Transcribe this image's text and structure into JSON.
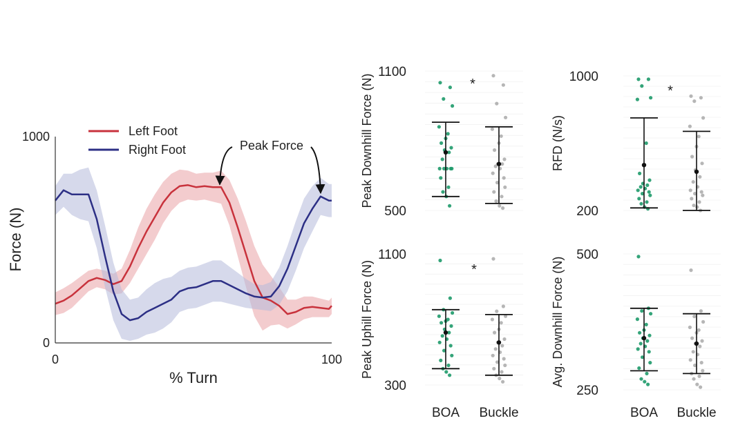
{
  "chart_data": [
    {
      "type": "line",
      "ylabel": "Force (N)",
      "xlabel": "% Turn",
      "xlim": [
        0,
        100
      ],
      "ylim": [
        0,
        1000
      ],
      "xticks": [
        "0",
        "100"
      ],
      "yticks": [
        "0",
        "1000"
      ],
      "legend_position": "top-left",
      "annotation": "Peak Force",
      "annotation_points": [
        [
          60,
          755
        ],
        [
          96,
          700
        ]
      ],
      "series": [
        {
          "name": "Left Foot",
          "color": "#c8323c",
          "band_color": "#eaa2a6",
          "x": [
            0,
            3,
            6,
            9,
            12,
            15,
            18,
            21,
            24,
            27,
            30,
            33,
            36,
            39,
            42,
            45,
            48,
            51,
            54,
            57,
            60,
            63,
            66,
            69,
            72,
            75,
            78,
            81,
            84,
            87,
            90,
            93,
            96,
            99,
            100
          ],
          "y": [
            190,
            205,
            230,
            265,
            300,
            315,
            305,
            285,
            300,
            370,
            460,
            540,
            610,
            680,
            730,
            760,
            765,
            755,
            760,
            755,
            755,
            680,
            560,
            430,
            300,
            220,
            205,
            180,
            140,
            150,
            170,
            175,
            170,
            165,
            180
          ],
          "spread": [
            55,
            60,
            60,
            55,
            50,
            45,
            45,
            50,
            60,
            80,
            100,
            110,
            110,
            100,
            90,
            80,
            70,
            65,
            65,
            70,
            80,
            110,
            140,
            160,
            170,
            160,
            120,
            90,
            70,
            60,
            55,
            50,
            45,
            40,
            40
          ]
        },
        {
          "name": "Right Foot",
          "color": "#2c2f85",
          "band_color": "#b5b9da",
          "x": [
            0,
            3,
            6,
            9,
            12,
            15,
            18,
            21,
            24,
            27,
            30,
            33,
            36,
            39,
            42,
            45,
            48,
            51,
            54,
            57,
            60,
            63,
            66,
            69,
            72,
            75,
            78,
            81,
            84,
            87,
            90,
            93,
            96,
            99,
            100
          ],
          "y": [
            690,
            740,
            720,
            720,
            720,
            600,
            420,
            250,
            140,
            110,
            120,
            150,
            170,
            190,
            210,
            250,
            265,
            270,
            285,
            300,
            300,
            280,
            260,
            240,
            225,
            220,
            225,
            275,
            360,
            470,
            580,
            650,
            710,
            690,
            690
          ],
          "spread": [
            70,
            80,
            100,
            120,
            130,
            140,
            150,
            140,
            120,
            100,
            100,
            110,
            120,
            120,
            110,
            100,
            100,
            100,
            100,
            100,
            100,
            90,
            80,
            70,
            60,
            60,
            70,
            90,
            110,
            120,
            120,
            110,
            90,
            80,
            80
          ]
        }
      ]
    },
    {
      "type": "scatter",
      "subtype": "strip_with_error_bars",
      "ylabel": "Peak Downhill Force (N)",
      "ylim": [
        500,
        1100
      ],
      "yticks": [
        "500",
        "1100"
      ],
      "categories": [
        "BOA",
        "Buckle"
      ],
      "significance": "*",
      "point_colors": [
        "#1e9a6a",
        "#9e9e9e"
      ],
      "series": [
        {
          "name": "BOA",
          "mean": 750,
          "lower": 560,
          "upper": 880,
          "points": [
            1050,
            1030,
            980,
            950,
            860,
            830,
            810,
            790,
            770,
            760,
            750,
            720,
            680,
            680,
            680,
            680,
            680,
            640,
            600,
            580,
            560,
            520
          ]
        },
        {
          "name": "Buckle",
          "mean": 700,
          "lower": 530,
          "upper": 860,
          "points": [
            1080,
            1040,
            960,
            900,
            850,
            820,
            790,
            760,
            720,
            700,
            700,
            690,
            680,
            660,
            640,
            620,
            600,
            580,
            560,
            540,
            520,
            510
          ]
        }
      ]
    },
    {
      "type": "scatter",
      "subtype": "strip_with_error_bars",
      "ylabel": "RFD (N/s)",
      "ylim": [
        200,
        1000
      ],
      "yticks": [
        "200",
        "1000"
      ],
      "categories": [
        "BOA",
        "Buckle"
      ],
      "significance": "*",
      "point_colors": [
        "#1e9a6a",
        "#9e9e9e"
      ],
      "series": [
        {
          "name": "BOA",
          "mean": 470,
          "lower": 215,
          "upper": 750,
          "points": [
            980,
            980,
            940,
            870,
            860,
            600,
            470,
            420,
            380,
            360,
            350,
            340,
            330,
            320,
            310,
            300,
            290,
            270,
            250,
            240,
            220,
            210
          ]
        },
        {
          "name": "Buckle",
          "mean": 430,
          "lower": 200,
          "upper": 670,
          "points": [
            880,
            870,
            850,
            750,
            700,
            640,
            580,
            520,
            480,
            440,
            400,
            370,
            340,
            320,
            310,
            300,
            290,
            270,
            250,
            230,
            220,
            200
          ]
        }
      ]
    },
    {
      "type": "scatter",
      "subtype": "strip_with_error_bars",
      "ylabel": "Peak Uphill Force (N)",
      "ylim": [
        300,
        1100
      ],
      "yticks": [
        "300",
        "1100"
      ],
      "categories": [
        "BOA",
        "Buckle"
      ],
      "significance": "*",
      "point_colors": [
        "#1e9a6a",
        "#9e9e9e"
      ],
      "series": [
        {
          "name": "BOA",
          "mean": 620,
          "lower": 400,
          "upper": 760,
          "points": [
            1060,
            830,
            760,
            740,
            720,
            700,
            690,
            680,
            660,
            640,
            620,
            600,
            580,
            560,
            540,
            510,
            480,
            450,
            420,
            400,
            380,
            360
          ]
        },
        {
          "name": "Buckle",
          "mean": 560,
          "lower": 360,
          "upper": 730,
          "points": [
            1070,
            780,
            750,
            720,
            700,
            680,
            640,
            620,
            580,
            560,
            540,
            520,
            500,
            480,
            460,
            440,
            420,
            400,
            380,
            360,
            340,
            320
          ]
        }
      ]
    },
    {
      "type": "scatter",
      "subtype": "strip_with_error_bars",
      "ylabel": "Avg. Downhill Force (N)",
      "ylim": [
        250,
        500
      ],
      "yticks": [
        "250",
        "500"
      ],
      "categories": [
        "BOA",
        "Buckle"
      ],
      "significance": "",
      "point_colors": [
        "#1e9a6a",
        "#9e9e9e"
      ],
      "series": [
        {
          "name": "BOA",
          "mean": 345,
          "lower": 285,
          "upper": 400,
          "points": [
            495,
            400,
            395,
            390,
            380,
            370,
            360,
            355,
            350,
            345,
            340,
            335,
            330,
            325,
            320,
            310,
            300,
            290,
            280,
            270,
            265,
            260
          ]
        },
        {
          "name": "Buckle",
          "mean": 335,
          "lower": 280,
          "upper": 390,
          "points": [
            470,
            395,
            385,
            375,
            365,
            360,
            355,
            345,
            340,
            335,
            330,
            320,
            315,
            305,
            300,
            295,
            285,
            280,
            275,
            270,
            260,
            255
          ]
        }
      ]
    }
  ]
}
